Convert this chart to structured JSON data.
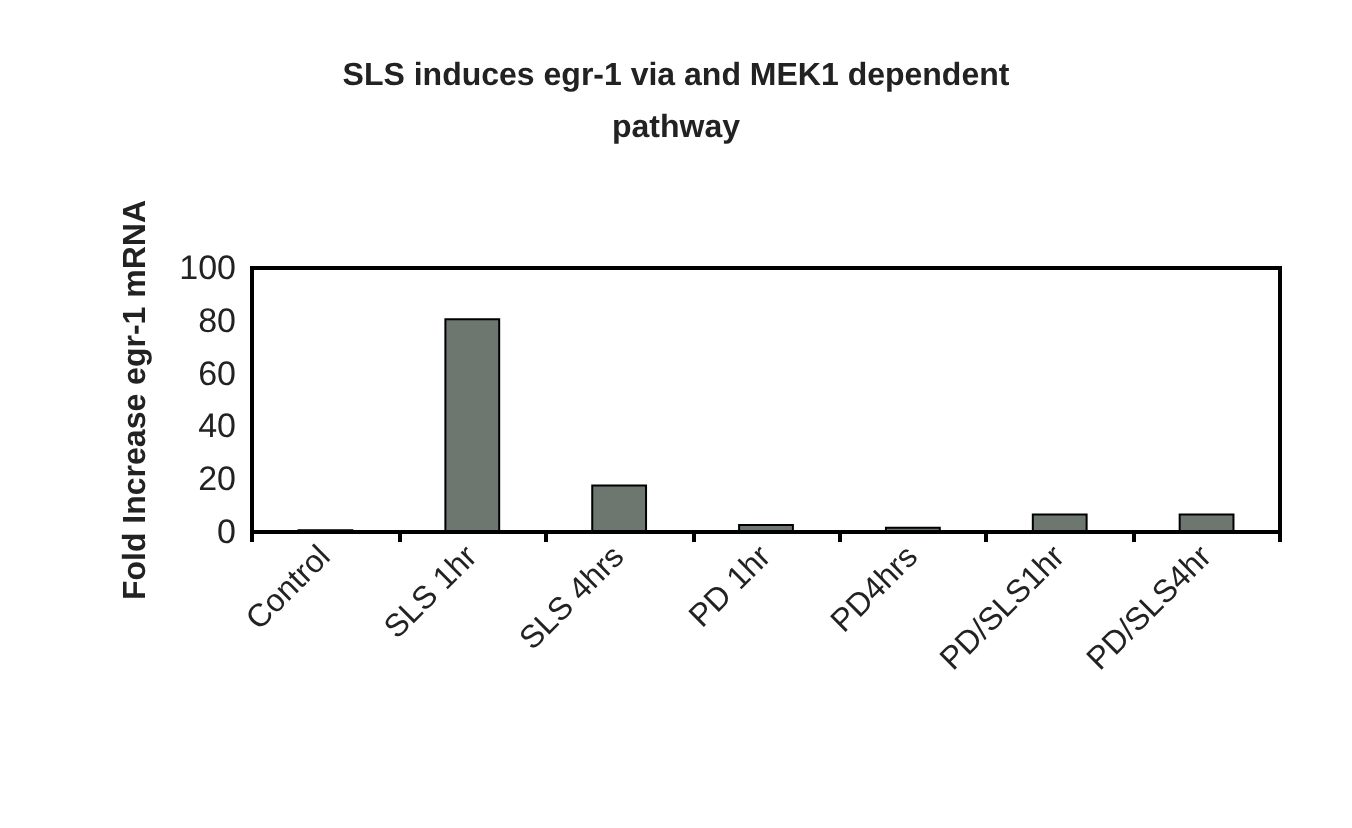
{
  "chart_data": {
    "type": "bar",
    "title": "SLS induces egr-1 via and MEK1 dependent\npathway",
    "ylabel": "Fold Increase egr-1 mRNA",
    "categories": [
      "Control",
      "SLS 1hr",
      "SLS 4hrs",
      "PD 1hr",
      "PD4hrs",
      "PD/SLS1hr",
      "PD/SLS4hr"
    ],
    "values": [
      1,
      81,
      18,
      3,
      2,
      7,
      7
    ],
    "color": "#6e7670",
    "ylim": [
      0,
      100
    ],
    "yticks": [
      0,
      20,
      40,
      60,
      80,
      100
    ],
    "grid": false
  }
}
